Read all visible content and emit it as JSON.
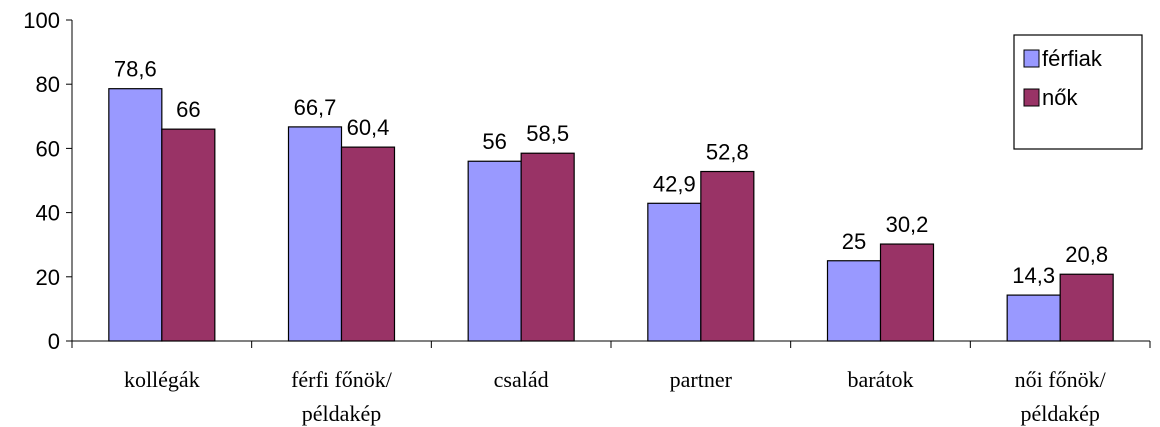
{
  "chart_data": {
    "type": "bar",
    "categories": [
      [
        "kollégák"
      ],
      [
        "férfi főnök/",
        "példakép"
      ],
      [
        "család"
      ],
      [
        "partner"
      ],
      [
        "barátok"
      ],
      [
        "női főnök/",
        "példakép"
      ]
    ],
    "series": [
      {
        "name": "férfiak",
        "color": "#9999ff",
        "values": [
          78.6,
          66.7,
          56,
          42.9,
          25,
          14.3
        ],
        "labels": [
          "78,6",
          "66,7",
          "56",
          "42,9",
          "25",
          "14,3"
        ]
      },
      {
        "name": "nők",
        "color": "#993366",
        "values": [
          66,
          60.4,
          58.5,
          52.8,
          30.2,
          20.8
        ],
        "labels": [
          "66",
          "60,4",
          "58,5",
          "52,8",
          "30,2",
          "20,8"
        ]
      }
    ],
    "ylim": [
      0,
      100
    ],
    "yticks": [
      "0",
      "20",
      "40",
      "60",
      "80",
      "100"
    ],
    "title": "",
    "xlabel": "",
    "ylabel": "",
    "legend": "top-right",
    "grid": false
  }
}
